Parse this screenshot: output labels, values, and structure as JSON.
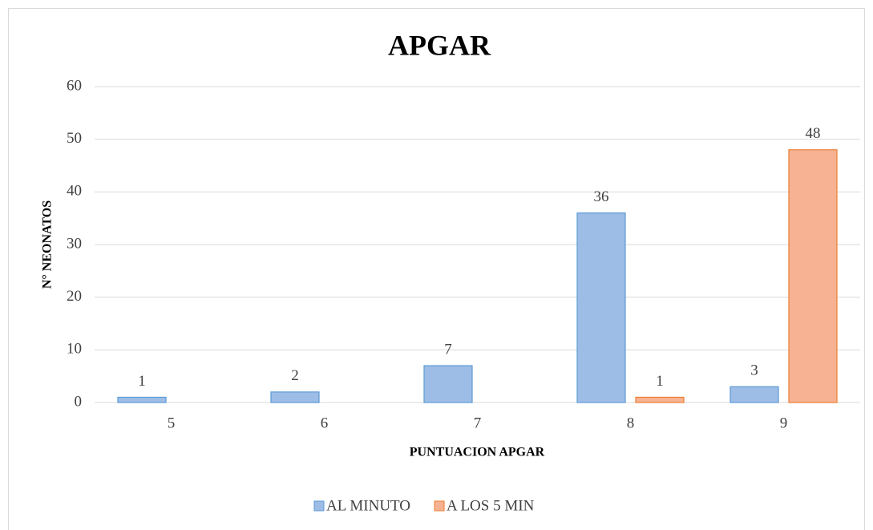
{
  "chart_data": {
    "type": "bar",
    "title": "APGAR",
    "x_label": "PUNTUACION APGAR",
    "y_label": "N° NEONATOS",
    "categories": [
      "5",
      "6",
      "7",
      "8",
      "9"
    ],
    "series": [
      {
        "name": "AL MINUTO",
        "color": "#9dbde6",
        "values": [
          1,
          2,
          7,
          36,
          3
        ]
      },
      {
        "name": "A LOS 5 MIN",
        "color": "#f6b293",
        "values": [
          null,
          null,
          null,
          1,
          48
        ]
      }
    ],
    "ylim": [
      0,
      60
    ],
    "yticks": [
      0,
      10,
      20,
      30,
      40,
      50,
      60
    ],
    "grid": true,
    "legend": "bottom"
  }
}
